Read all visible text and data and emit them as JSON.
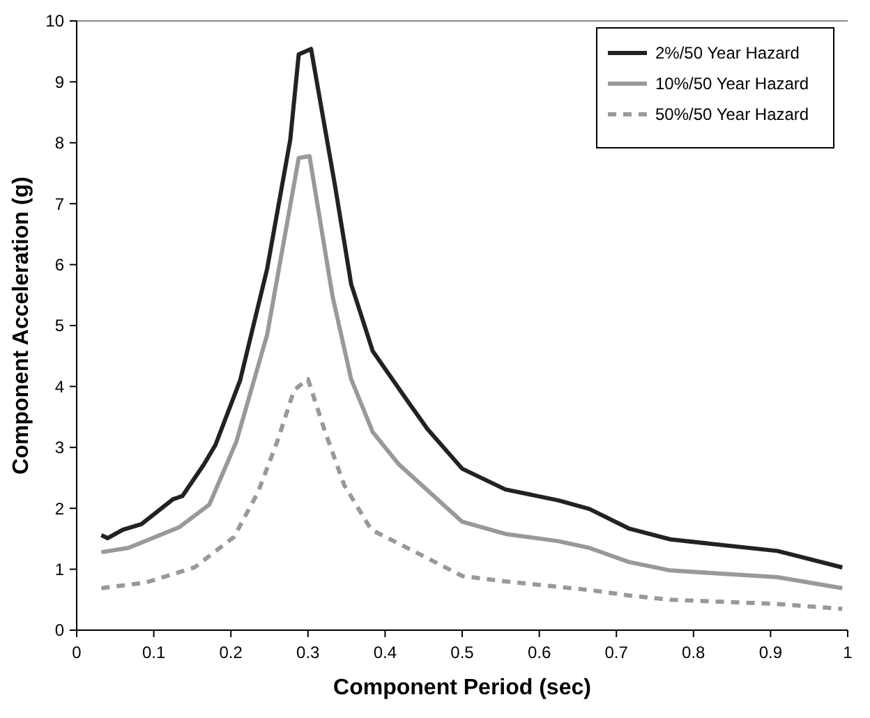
{
  "chart_data": {
    "type": "line",
    "xlabel": "Component Period (sec)",
    "ylabel": "Component Acceleration (g)",
    "xlim": [
      0,
      1
    ],
    "ylim": [
      0,
      10
    ],
    "xticks": [
      0,
      0.1,
      0.2,
      0.3,
      0.4,
      0.5,
      0.6,
      0.7,
      0.8,
      0.9,
      1
    ],
    "yticks": [
      0,
      1,
      2,
      3,
      4,
      5,
      6,
      7,
      8,
      9,
      10
    ],
    "grid": false,
    "legend": "top right",
    "series": [
      {
        "name": "2%/50 Year Hazard",
        "color": "#222222",
        "line_style": "solid",
        "x": [
          0.032,
          0.04,
          0.06,
          0.084,
          0.125,
          0.137,
          0.165,
          0.18,
          0.212,
          0.247,
          0.277,
          0.288,
          0.304,
          0.335,
          0.356,
          0.384,
          0.432,
          0.455,
          0.5,
          0.556,
          0.625,
          0.665,
          0.716,
          0.77,
          0.909,
          0.993
        ],
        "values": [
          1.56,
          1.51,
          1.65,
          1.74,
          2.15,
          2.2,
          2.72,
          3.04,
          4.1,
          5.93,
          8.05,
          9.45,
          9.54,
          7.3,
          5.68,
          4.58,
          3.71,
          3.3,
          2.65,
          2.31,
          2.13,
          1.99,
          1.67,
          1.49,
          1.3,
          1.03
        ]
      },
      {
        "name": "10%/50 Year Hazard",
        "color": "#999999",
        "line_style": "solid",
        "x": [
          0.032,
          0.067,
          0.133,
          0.172,
          0.207,
          0.247,
          0.288,
          0.302,
          0.332,
          0.356,
          0.384,
          0.418,
          0.5,
          0.556,
          0.625,
          0.665,
          0.716,
          0.77,
          0.909,
          0.993
        ],
        "values": [
          1.28,
          1.35,
          1.69,
          2.06,
          3.09,
          4.85,
          7.75,
          7.78,
          5.47,
          4.12,
          3.25,
          2.72,
          1.78,
          1.58,
          1.46,
          1.35,
          1.12,
          0.98,
          0.87,
          0.69
        ]
      },
      {
        "name": "50%/50 Year Hazard",
        "color": "#999999",
        "line_style": "dashed",
        "x": [
          0.032,
          0.089,
          0.153,
          0.204,
          0.235,
          0.26,
          0.282,
          0.3,
          0.321,
          0.347,
          0.382,
          0.446,
          0.5,
          0.556,
          0.665,
          0.716,
          0.77,
          0.909,
          0.993
        ],
        "values": [
          0.69,
          0.78,
          1.03,
          1.53,
          2.26,
          3.09,
          3.94,
          4.12,
          3.3,
          2.38,
          1.65,
          1.24,
          0.89,
          0.8,
          0.66,
          0.57,
          0.5,
          0.43,
          0.35
        ]
      }
    ]
  }
}
